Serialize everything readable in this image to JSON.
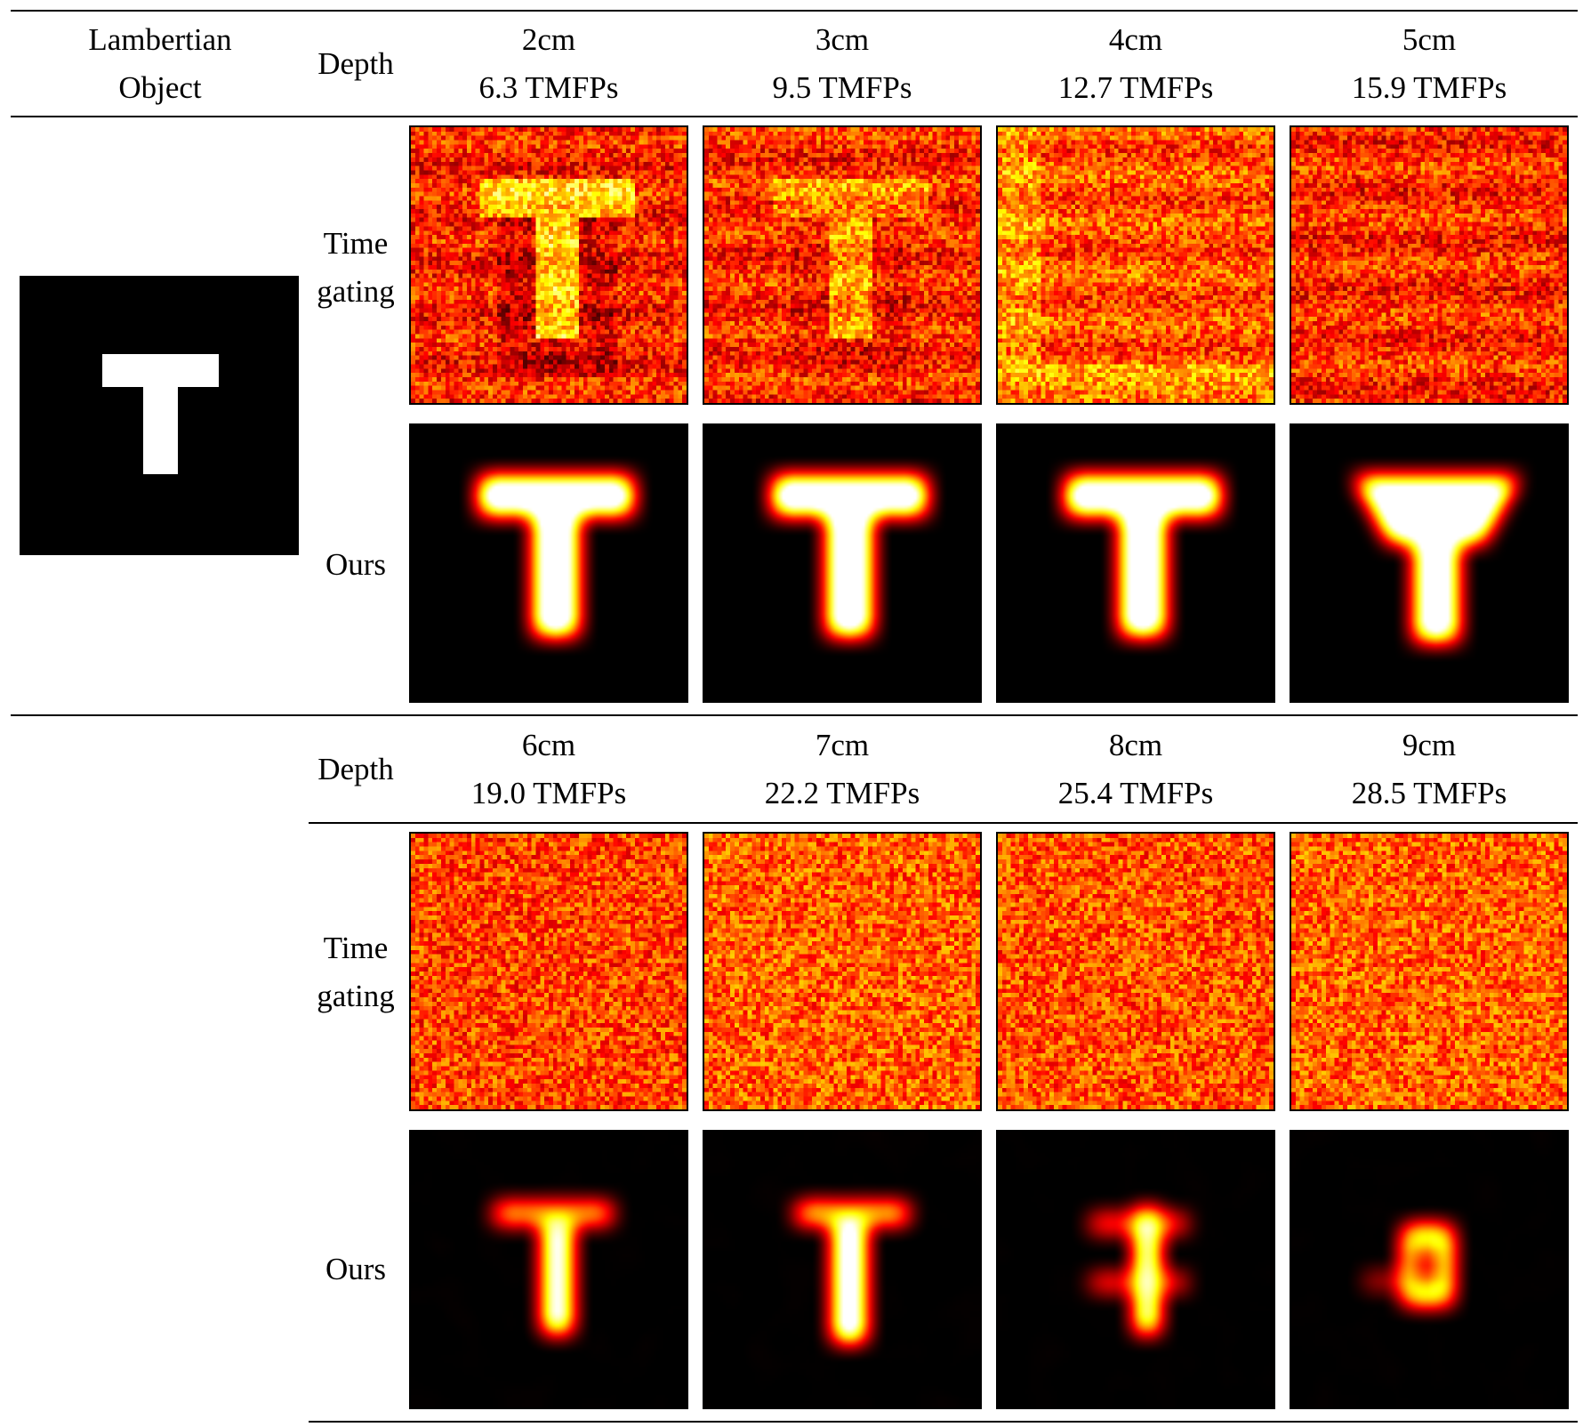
{
  "figure": {
    "object_header": [
      "Lambertian",
      "Object"
    ],
    "depth_label": "Depth",
    "method_labels": {
      "time_gating": [
        "Time",
        "gating"
      ],
      "ours": [
        "Ours"
      ]
    },
    "groups": [
      {
        "columns": [
          {
            "depth": "2cm",
            "tmfps": "6.3 TMFPs"
          },
          {
            "depth": "3cm",
            "tmfps": "9.5 TMFPs"
          },
          {
            "depth": "4cm",
            "tmfps": "12.7 TMFPs"
          },
          {
            "depth": "5cm",
            "tmfps": "15.9 TMFPs"
          }
        ]
      },
      {
        "columns": [
          {
            "depth": "6cm",
            "tmfps": "19.0 TMFPs"
          },
          {
            "depth": "7cm",
            "tmfps": "22.2 TMFPs"
          },
          {
            "depth": "8cm",
            "tmfps": "25.4 TMFPs"
          },
          {
            "depth": "9cm",
            "tmfps": "28.5 TMFPs"
          }
        ]
      }
    ],
    "colormap": "hot"
  }
}
